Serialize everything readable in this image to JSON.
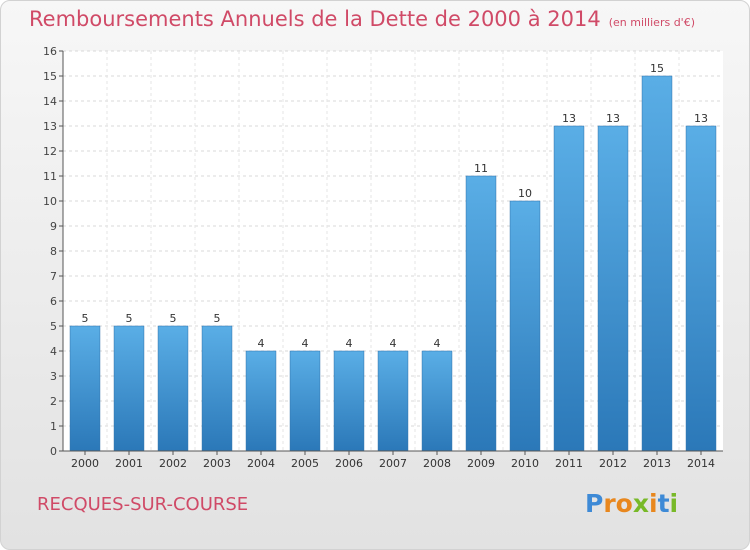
{
  "header": {
    "title": "Remboursements Annuels de la Dette de 2000 à 2014",
    "unit": "(en milliers d'€)"
  },
  "footer": {
    "commune": "RECQUES-SUR-COURSE",
    "logo_text": "Proxiti"
  },
  "colors": {
    "title": "#d04a67",
    "bar_light": "#5aaee6",
    "bar_dark": "#2b78b8",
    "logo_letters": [
      "#3e8ad6",
      "#e8871e",
      "#e8871e",
      "#78b928",
      "#e8871e",
      "#3e8ad6",
      "#78b928"
    ]
  },
  "chart_data": {
    "type": "bar",
    "categories": [
      "2000",
      "2001",
      "2002",
      "2003",
      "2004",
      "2005",
      "2006",
      "2007",
      "2008",
      "2009",
      "2010",
      "2011",
      "2012",
      "2013",
      "2014"
    ],
    "values": [
      5,
      5,
      5,
      5,
      4,
      4,
      4,
      4,
      4,
      11,
      10,
      13,
      13,
      15,
      13
    ],
    "ylim": [
      0,
      16
    ],
    "yticks": [
      0,
      1,
      2,
      3,
      4,
      5,
      6,
      7,
      8,
      9,
      10,
      11,
      12,
      13,
      14,
      15,
      16
    ],
    "grid": true,
    "data_labels": true
  }
}
